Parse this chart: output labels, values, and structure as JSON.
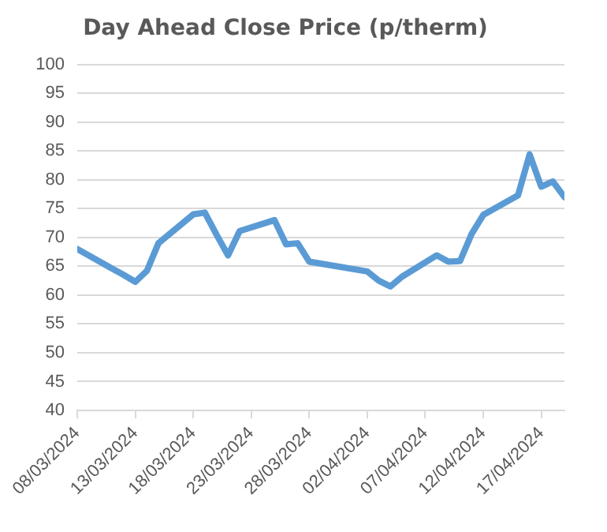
{
  "chart_data": {
    "type": "line",
    "title": "Day Ahead Close Price (p/therm)",
    "x": [
      "2024-03-08",
      "2024-03-11",
      "2024-03-12",
      "2024-03-13",
      "2024-03-14",
      "2024-03-15",
      "2024-03-18",
      "2024-03-19",
      "2024-03-20",
      "2024-03-21",
      "2024-03-22",
      "2024-03-25",
      "2024-03-26",
      "2024-03-27",
      "2024-03-28",
      "2024-04-02",
      "2024-04-03",
      "2024-04-04",
      "2024-04-05",
      "2024-04-08",
      "2024-04-09",
      "2024-04-10",
      "2024-04-11",
      "2024-04-12",
      "2024-04-15",
      "2024-04-16",
      "2024-04-17",
      "2024-04-18",
      "2024-04-19"
    ],
    "series": [
      {
        "color": "#5b9bd5",
        "values": [
          68,
          64.6,
          63.5,
          62.3,
          64.2,
          69,
          74,
          74.3,
          70.5,
          66.9,
          71.1,
          73,
          68.8,
          69,
          65.8,
          64.1,
          62.5,
          61.5,
          63.2,
          66.9,
          65.8,
          65.9,
          70.6,
          73.9,
          77.3,
          84.4,
          78.8,
          79.7,
          77
        ]
      }
    ],
    "xlim": [
      "2024-03-08",
      "2024-04-19"
    ],
    "xticks": [
      {
        "value": "2024-03-08",
        "label": "08/03/2024"
      },
      {
        "value": "2024-03-13",
        "label": "13/03/2024"
      },
      {
        "value": "2024-03-18",
        "label": "18/03/2024"
      },
      {
        "value": "2024-03-23",
        "label": "23/03/2024"
      },
      {
        "value": "2024-03-28",
        "label": "28/03/2024"
      },
      {
        "value": "2024-04-02",
        "label": "02/04/2024"
      },
      {
        "value": "2024-04-07",
        "label": "07/04/2024"
      },
      {
        "value": "2024-04-12",
        "label": "12/04/2024"
      },
      {
        "value": "2024-04-17",
        "label": "17/04/2024"
      }
    ],
    "ylim": [
      40,
      100
    ],
    "yticks": [
      40,
      45,
      50,
      55,
      60,
      65,
      70,
      75,
      80,
      85,
      90,
      95,
      100
    ],
    "grid": "y",
    "legend": false,
    "marker": "none",
    "line_style": "solid"
  }
}
